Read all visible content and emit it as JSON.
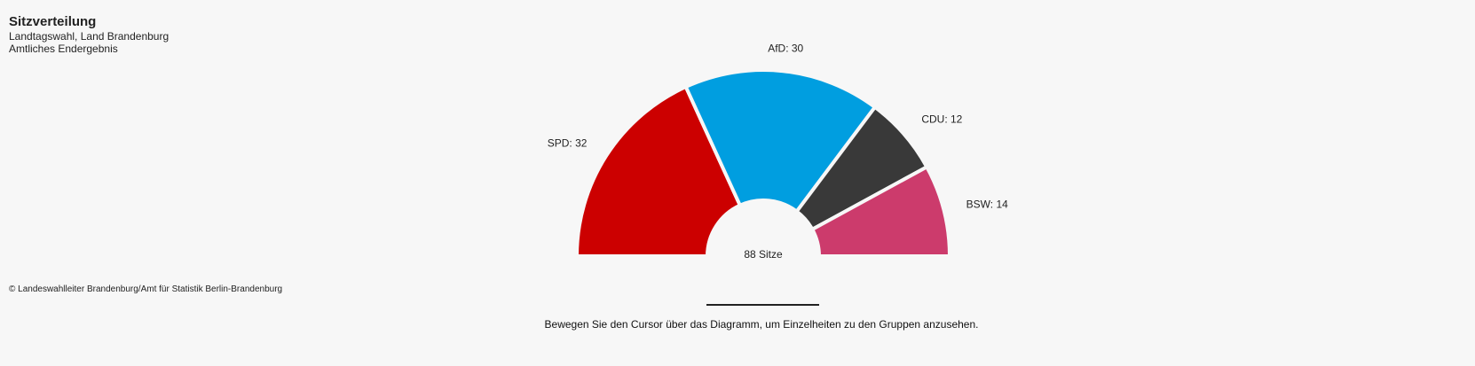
{
  "chart_data": {
    "type": "pie",
    "subtype": "parliament-semicircle",
    "title": "Sitzverteilung",
    "subtitle": [
      "Landtagswahl, Land Brandenburg",
      "Amtliches Endergebnis"
    ],
    "center_label": "88 Sitze",
    "total_seats": 88,
    "series": [
      {
        "name": "SPD",
        "value": 32,
        "color": "#cc0000",
        "label": "SPD: 32"
      },
      {
        "name": "AfD",
        "value": 30,
        "color": "#009ee0",
        "label": "AfD: 30"
      },
      {
        "name": "CDU",
        "value": 12,
        "color": "#393939",
        "label": "CDU: 12"
      },
      {
        "name": "BSW",
        "value": 14,
        "color": "#cc3b6c",
        "label": "BSW: 14"
      }
    ]
  },
  "source": "© Landeswahlleiter Brandenburg/Amt für Statistik Berlin-Brandenburg",
  "hint": "Bewegen Sie den Cursor über das Diagramm, um Einzelheiten zu den Gruppen anzusehen."
}
